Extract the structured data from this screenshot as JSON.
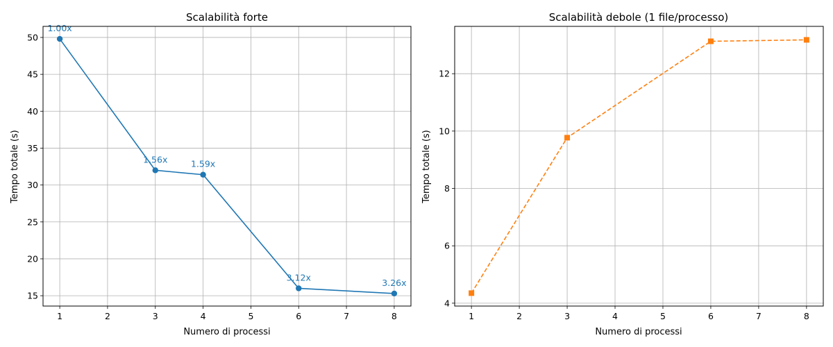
{
  "chart_data": [
    {
      "type": "line",
      "title": "Scalabilità forte",
      "xlabel": "Numero di processi",
      "ylabel": "Tempo totale (s)",
      "xlim": [
        0.65,
        8.35
      ],
      "ylim": [
        13.6,
        51.5
      ],
      "xticks": [
        1,
        2,
        3,
        4,
        5,
        6,
        7,
        8
      ],
      "yticks": [
        15,
        20,
        25,
        30,
        35,
        40,
        45,
        50
      ],
      "grid": true,
      "series": [
        {
          "x": [
            1,
            3,
            4,
            6,
            8
          ],
          "values": [
            49.8,
            32.0,
            31.4,
            16.0,
            15.3
          ],
          "color": "#1f77b4",
          "marker": "circle",
          "linestyle": "solid",
          "labels": [
            "1.00x",
            "1.56x",
            "1.59x",
            "3.12x",
            "3.26x"
          ]
        }
      ]
    },
    {
      "type": "line",
      "title": "Scalabilità debole (1 file/processo)",
      "xlabel": "Numero di processi",
      "ylabel": "Tempo totale (s)",
      "xlim": [
        0.65,
        8.35
      ],
      "ylim": [
        3.9,
        13.65
      ],
      "xticks": [
        1,
        2,
        3,
        4,
        5,
        6,
        7,
        8
      ],
      "yticks": [
        4,
        6,
        8,
        10,
        12
      ],
      "grid": true,
      "series": [
        {
          "x": [
            1,
            3,
            6,
            8
          ],
          "values": [
            4.35,
            9.77,
            13.13,
            13.18
          ],
          "color": "#ff7f0e",
          "marker": "square",
          "linestyle": "dashed"
        }
      ]
    }
  ]
}
